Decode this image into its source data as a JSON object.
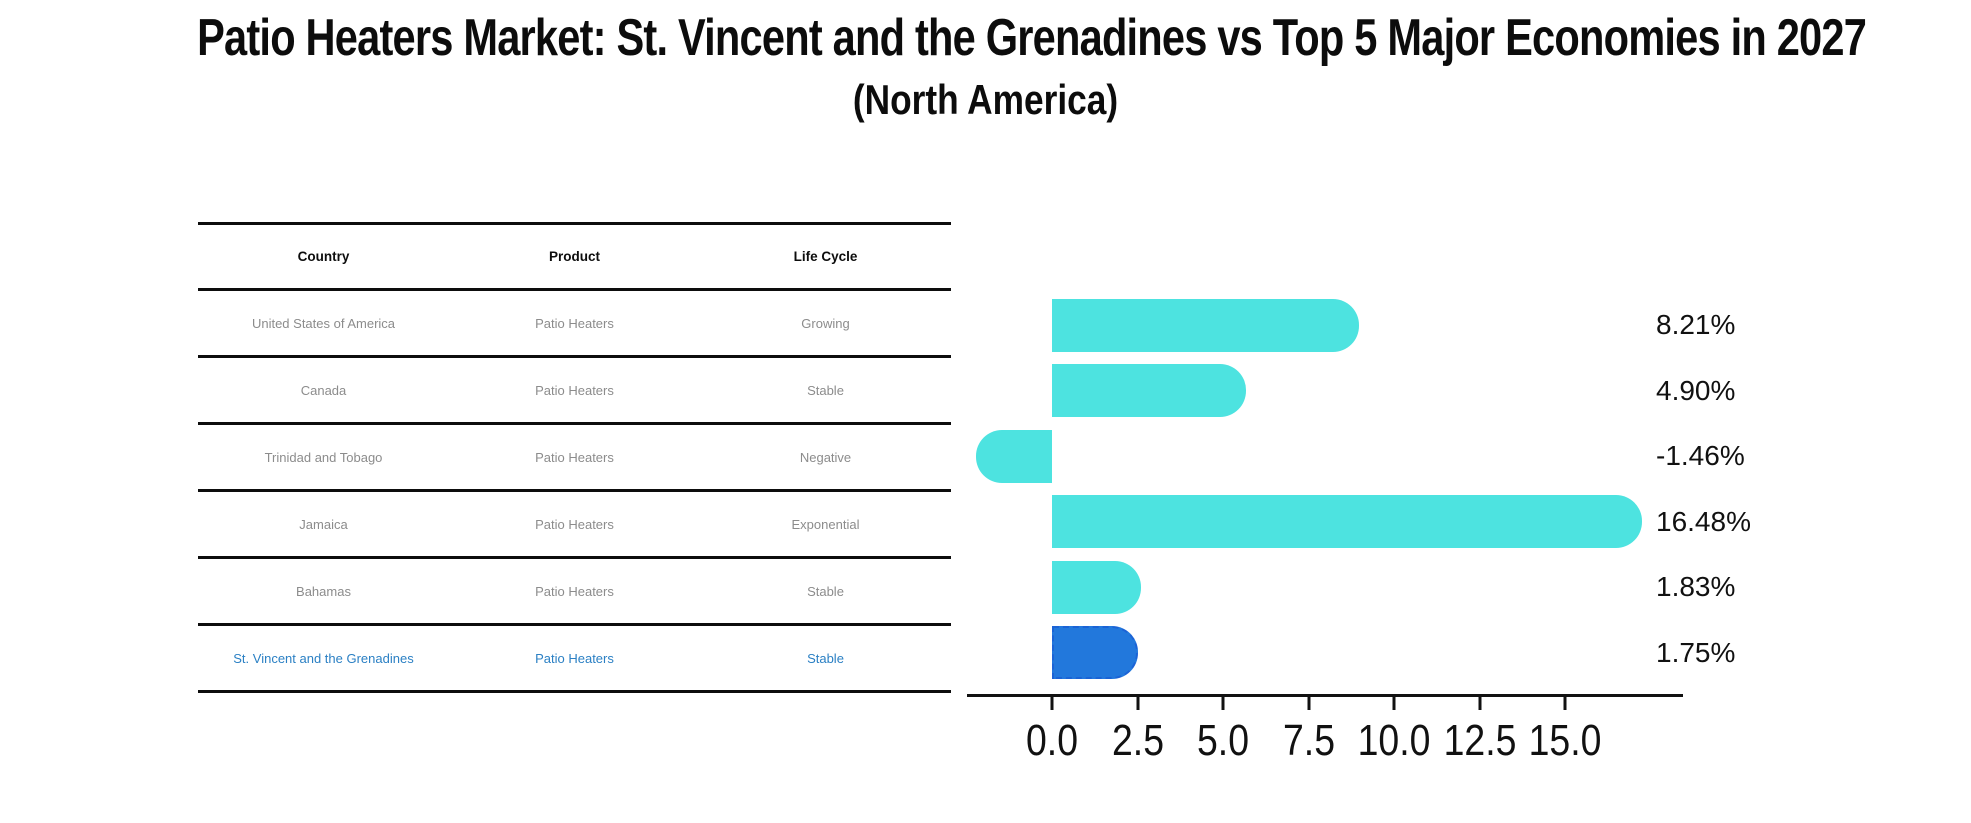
{
  "title": "Patio Heaters Market: St. Vincent and the Grenadines vs Top 5 Major Economies in 2027",
  "subtitle": "(North America)",
  "table": {
    "headers": [
      "Country",
      "Product",
      "Life Cycle"
    ],
    "rows": [
      {
        "country": "United States of America",
        "product": "Patio Heaters",
        "life_cycle": "Growing"
      },
      {
        "country": "Canada",
        "product": "Patio Heaters",
        "life_cycle": "Stable"
      },
      {
        "country": "Trinidad and Tobago",
        "product": "Patio Heaters",
        "life_cycle": "Negative"
      },
      {
        "country": "Jamaica",
        "product": "Patio Heaters",
        "life_cycle": "Exponential"
      },
      {
        "country": "Bahamas",
        "product": "Patio Heaters",
        "life_cycle": "Stable"
      },
      {
        "country": "St. Vincent and the Grenadines",
        "product": "Patio Heaters",
        "life_cycle": "Stable"
      }
    ],
    "highlight_row_index": 5,
    "highlight_text_color": "#2b80c4"
  },
  "chart_data": {
    "type": "bar",
    "orientation": "horizontal",
    "title": "Patio Heaters Market: St. Vincent and the Grenadines vs Top 5 Major Economies in 2027 (North America)",
    "categories": [
      "United States of America",
      "Canada",
      "Trinidad and Tobago",
      "Jamaica",
      "Bahamas",
      "St. Vincent and the Grenadines"
    ],
    "values": [
      8.21,
      4.9,
      -1.46,
      16.48,
      1.83,
      1.75
    ],
    "value_labels": [
      "8.21%",
      "4.90%",
      "-1.46%",
      "16.48%",
      "1.83%",
      "1.75%"
    ],
    "x_ticks": [
      "0.0",
      "2.5",
      "5.0",
      "7.5",
      "10.0",
      "12.5",
      "15.0"
    ],
    "x_tick_values": [
      0,
      2.5,
      5,
      7.5,
      10,
      12.5,
      15
    ],
    "xlim": [
      -2.5,
      18.5
    ],
    "grid": false,
    "legend": false,
    "bar_color": "#4de3e0",
    "highlight_bar_color": "#2278dc",
    "highlight_border_color": "#1b63d6",
    "highlight_border_style": "dashed",
    "highlight_index": 5
  }
}
